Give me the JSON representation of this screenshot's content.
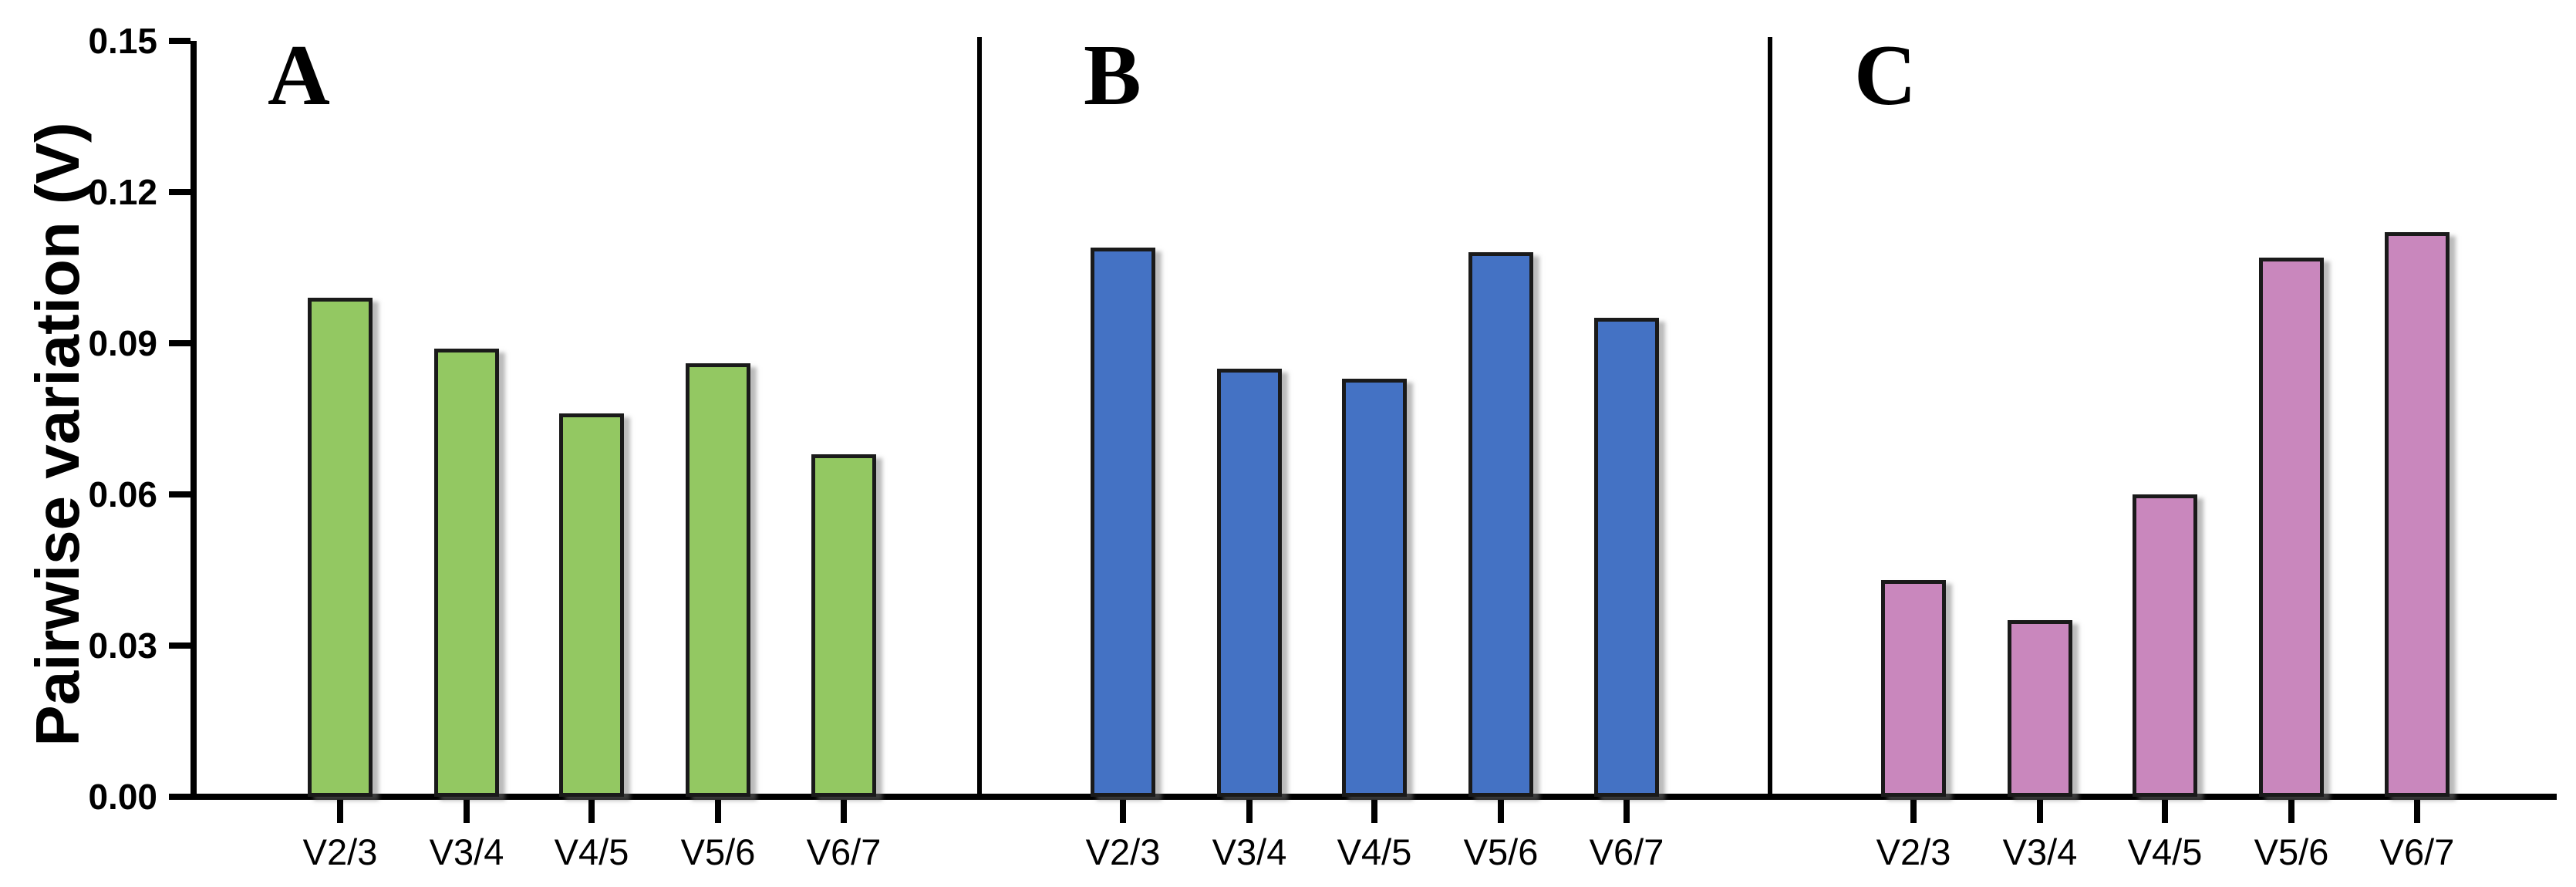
{
  "chart_data": {
    "type": "bar",
    "title": "",
    "ylabel": "Pairwise variation (V)",
    "xlabel": "",
    "ylim": [
      0,
      0.15
    ],
    "ytick_labels": [
      "0.00",
      "0.03",
      "0.06",
      "0.09",
      "0.12",
      "0.15"
    ],
    "yticks": [
      0.0,
      0.03,
      0.06,
      0.09,
      0.12,
      0.15
    ],
    "categories": [
      "V2/3",
      "V3/4",
      "V4/5",
      "V5/6",
      "V6/7"
    ],
    "grid": false,
    "legend_position": "none",
    "panels": [
      {
        "label": "A",
        "bar_color": "#93C862",
        "values": [
          0.099,
          0.089,
          0.076,
          0.086,
          0.068
        ]
      },
      {
        "label": "B",
        "bar_color": "#4472C4",
        "values": [
          0.109,
          0.085,
          0.083,
          0.108,
          0.095
        ]
      },
      {
        "label": "C",
        "bar_color": "#C987BD",
        "values": [
          0.043,
          0.035,
          0.06,
          0.107,
          0.112
        ]
      }
    ],
    "bar_outline_color": "#1A1A1A",
    "axis_color": "#000000",
    "text_color": "#000000",
    "background_color": "#FFFFFF"
  }
}
